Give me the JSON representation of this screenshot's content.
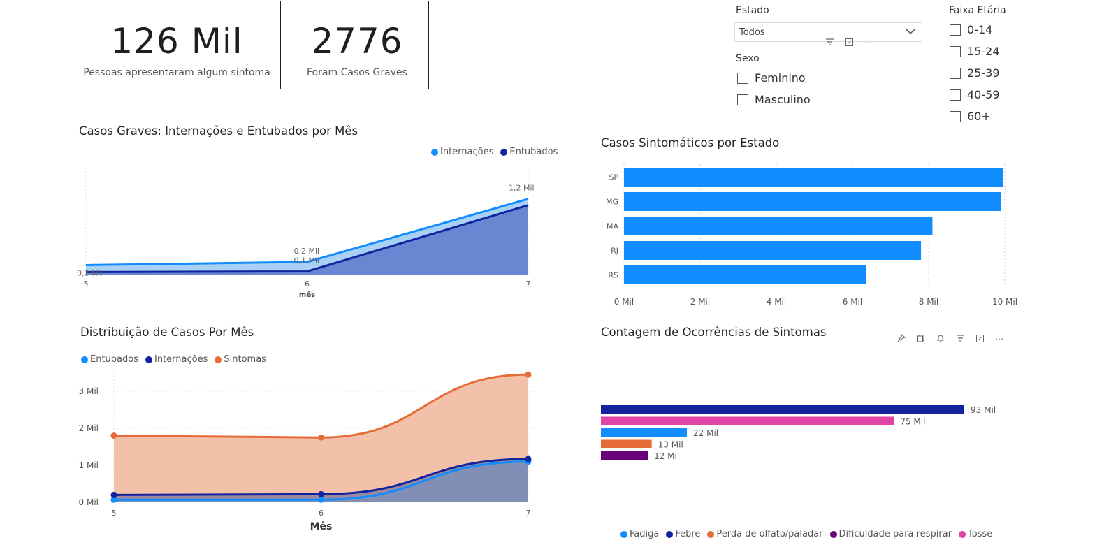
{
  "kpis": [
    {
      "value": "126 Mil",
      "label": "Pessoas apresentaram algum sintoma"
    },
    {
      "value": "2776",
      "label": "Foram Casos Graves"
    }
  ],
  "filters": {
    "estado": {
      "title": "Estado",
      "selected": "Todos"
    },
    "sexo": {
      "title": "Sexo",
      "options": [
        "Feminino",
        "Masculino"
      ]
    },
    "faixa": {
      "title": "Faixa Etária",
      "options": [
        "0-14",
        "15-24",
        "25-39",
        "40-59",
        "60+"
      ]
    }
  },
  "icons": {
    "filter": "filter-icon",
    "focus": "focus-mode-icon",
    "more": "more-options-icon",
    "pin": "pin-icon",
    "copy": "copy-icon",
    "bell": "bell-icon"
  },
  "colors": {
    "light_blue": "#118DFF",
    "dark_blue": "#12239E",
    "orange": "#E66C37",
    "purple": "#6B007B",
    "pink": "#E044A7"
  },
  "chart_data": [
    {
      "id": "graves",
      "type": "area",
      "title": "Casos Graves: Internações e Entubados por Mês",
      "xlabel": "mês",
      "x": [
        5,
        6,
        7
      ],
      "series": [
        {
          "name": "Internações",
          "values": [
            0.15,
            0.2,
            1.2
          ],
          "color": "#118DFF"
        },
        {
          "name": "Entubados",
          "values": [
            0.04,
            0.05,
            1.1
          ],
          "color": "#12239E"
        }
      ],
      "data_labels": [
        "0,2 Mil",
        "0,2 Mil",
        "0,1 Mil",
        "1,2 Mil"
      ],
      "ylim": [
        0,
        1.3
      ]
    },
    {
      "id": "estado",
      "type": "bar",
      "title": "Casos Sintomáticos por Estado",
      "categories": [
        "SP",
        "MG",
        "MA",
        "RJ",
        "RS"
      ],
      "values": [
        9.95,
        9.9,
        8.1,
        7.8,
        6.35
      ],
      "xticks": [
        "0 Mil",
        "2 Mil",
        "4 Mil",
        "6 Mil",
        "8 Mil",
        "10 Mil"
      ],
      "xlim": [
        0,
        10
      ],
      "color": "#118DFF"
    },
    {
      "id": "distribuicao",
      "type": "area",
      "title": "Distribuição de Casos Por Mês",
      "xlabel": "Mês",
      "x": [
        5,
        6,
        7
      ],
      "yticks": [
        "0 Mil",
        "1 Mil",
        "2 Mil",
        "3 Mil"
      ],
      "ylim": [
        0,
        3.6
      ],
      "series": [
        {
          "name": "Entubados",
          "values": [
            0.07,
            0.07,
            1.1
          ],
          "color": "#118DFF"
        },
        {
          "name": "Internações",
          "values": [
            0.2,
            0.22,
            1.17
          ],
          "color": "#12239E"
        },
        {
          "name": "Sintomas",
          "values": [
            1.8,
            1.75,
            3.45
          ],
          "color": "#E66C37"
        }
      ]
    },
    {
      "id": "sintomas",
      "type": "bar",
      "title": "Contagem de Ocorrências de Sintomas",
      "categories": [
        "Febre",
        "Tosse",
        "Fadiga",
        "Perda de olfato/paladar",
        "Dificuldade para respirar"
      ],
      "values": [
        93,
        75,
        22,
        13,
        12
      ],
      "labels": [
        "93 Mil",
        "75 Mil",
        "22 Mil",
        "13 Mil",
        "12 Mil"
      ],
      "colors": [
        "#12239E",
        "#E044A7",
        "#118DFF",
        "#E66C37",
        "#6B007B"
      ],
      "legend": [
        "Fadiga",
        "Febre",
        "Perda de olfato/paladar",
        "Dificuldade para respirar",
        "Tosse"
      ],
      "legend_colors": [
        "#118DFF",
        "#12239E",
        "#E66C37",
        "#6B007B",
        "#E044A7"
      ]
    }
  ]
}
